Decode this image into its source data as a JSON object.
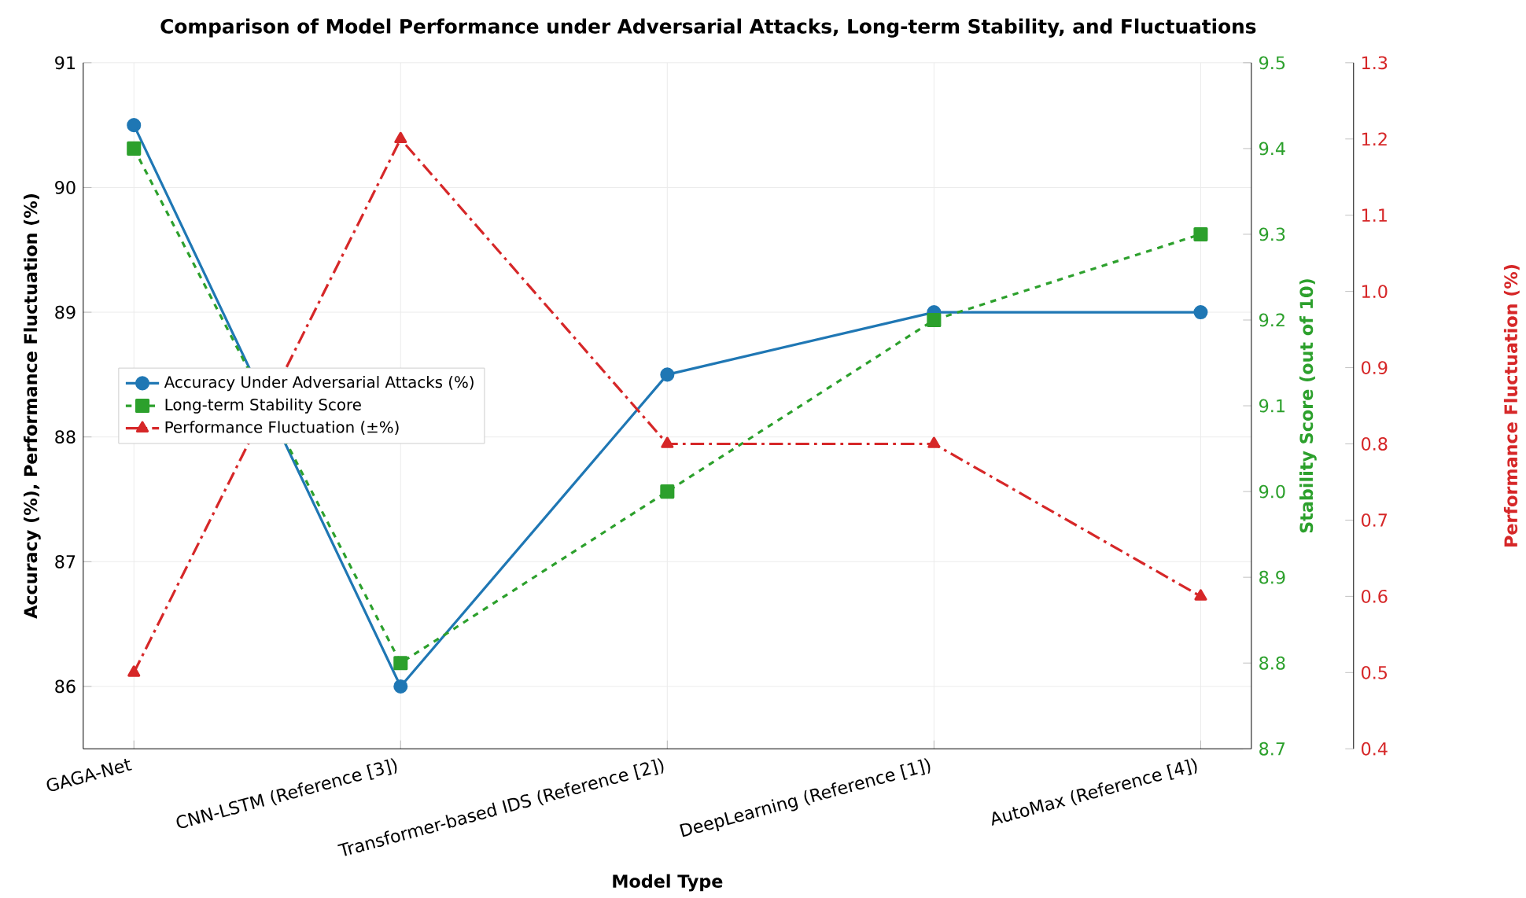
{
  "chart_data": {
    "type": "line",
    "title": "Comparison of Model Performance under Adversarial Attacks, Long-term Stability, and Fluctuations",
    "xlabel": "Model Type",
    "ylabel": "Accuracy (%), Performance Fluctuation (%)",
    "y2label": "Stability Score (out of 10)",
    "y3label": "Performance Fluctuation (%)",
    "categories": [
      "GAGA-Net",
      "CNN-LSTM (Reference [3])",
      "Transformer-based IDS (Reference [2])",
      "DeepLearning (Reference [1])",
      "AutoMax (Reference [4])"
    ],
    "ylim": [
      85.5,
      91
    ],
    "yticks": [
      86,
      87,
      88,
      89,
      90,
      91
    ],
    "y2lim": [
      8.7,
      9.5
    ],
    "y2ticks": [
      8.7,
      8.8,
      8.9,
      {
        "value": 9.0,
        "label": "9.0"
      },
      9.1,
      9.2,
      9.3,
      9.4,
      9.5
    ],
    "y3lim": [
      0.4,
      1.3
    ],
    "y3ticks": [
      0.4,
      0.5,
      0.6,
      0.7,
      0.8,
      0.9,
      {
        "value": 1.0,
        "label": "1.0"
      },
      1.1,
      1.2,
      1.3
    ],
    "grid": true,
    "legend": "left",
    "series": [
      {
        "name": "Accuracy Under Adversarial Attacks (%)",
        "color": "#1f77b4",
        "values": [
          90.5,
          86,
          88.5,
          89,
          89
        ],
        "marker": "circle",
        "line_style": "solid"
      },
      {
        "name": "Long-term Stability Score",
        "color": "#2ca02c",
        "values": [
          9.4,
          8.8,
          9.0,
          9.2,
          9.3
        ],
        "marker": "square",
        "line_style": "dashed",
        "axis": "y2"
      },
      {
        "name": "Performance Fluctuation (±%)",
        "color": "#d62728",
        "values": [
          0.5,
          1.2,
          0.8,
          0.8,
          0.6
        ],
        "marker": "triangle",
        "line_style": "dashdot",
        "axis": "y3"
      }
    ]
  }
}
